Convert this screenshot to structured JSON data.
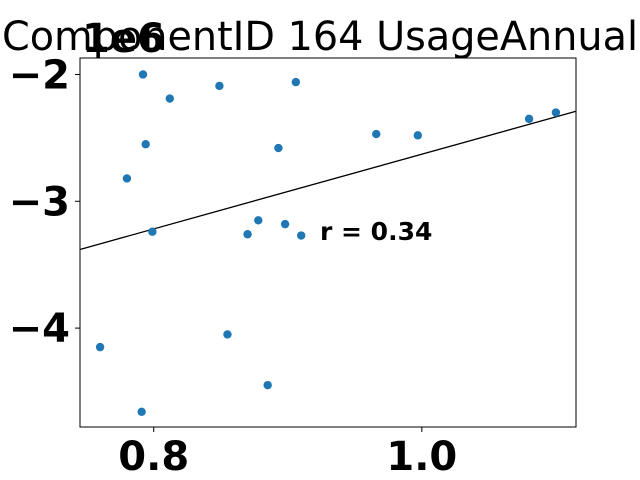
{
  "chart_data": {
    "type": "scatter",
    "title": "ComponentID 164 UsageAnnual",
    "xlabel": "",
    "ylabel": "",
    "y_offset_label": "1e6",
    "xlim": [
      0.745,
      1.115
    ],
    "ylim": [
      -4780000.0,
      -1870000.0
    ],
    "x_ticks": [
      0.8,
      1.0
    ],
    "x_tick_labels": [
      "0.8",
      "1.0"
    ],
    "y_ticks": [
      -2000000.0,
      -3000000.0,
      -4000000.0
    ],
    "y_tick_labels": [
      "−2",
      "−3",
      "−4"
    ],
    "grid": false,
    "point_color": "#1f77b4",
    "line_color": "#000000",
    "annotation": "r = 0.34",
    "points": [
      {
        "x": 0.792,
        "y": -2000000.0
      },
      {
        "x": 0.812,
        "y": -2190000.0
      },
      {
        "x": 0.849,
        "y": -2090000.0
      },
      {
        "x": 0.906,
        "y": -2060000.0
      },
      {
        "x": 0.794,
        "y": -2550000.0
      },
      {
        "x": 0.78,
        "y": -2820000.0
      },
      {
        "x": 0.799,
        "y": -3240000.0
      },
      {
        "x": 0.893,
        "y": -2580000.0
      },
      {
        "x": 0.966,
        "y": -2470000.0
      },
      {
        "x": 0.997,
        "y": -2480000.0
      },
      {
        "x": 1.08,
        "y": -2350000.0
      },
      {
        "x": 1.1,
        "y": -2300000.0
      },
      {
        "x": 0.878,
        "y": -3150000.0
      },
      {
        "x": 0.87,
        "y": -3260000.0
      },
      {
        "x": 0.898,
        "y": -3180000.0
      },
      {
        "x": 0.91,
        "y": -3270000.0
      },
      {
        "x": 0.76,
        "y": -4150000.0
      },
      {
        "x": 0.855,
        "y": -4050000.0
      },
      {
        "x": 0.885,
        "y": -4450000.0
      },
      {
        "x": 0.791,
        "y": -4660000.0
      }
    ],
    "fit_line": {
      "x": [
        0.745,
        1.115
      ],
      "y": [
        -3380000.0,
        -2290000.0
      ]
    }
  }
}
